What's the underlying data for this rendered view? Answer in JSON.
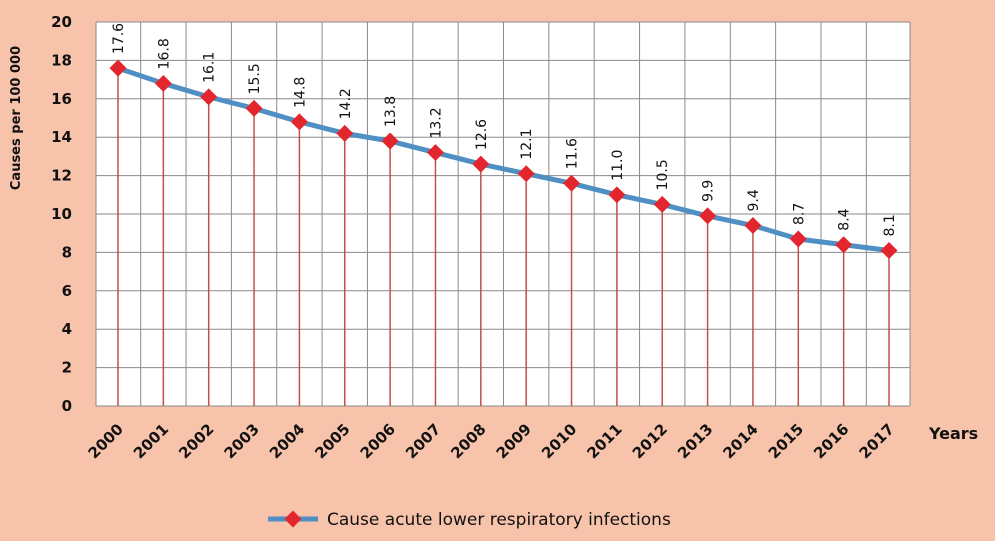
{
  "chart_data": {
    "type": "line",
    "x": [
      "2000",
      "2001",
      "2002",
      "2003",
      "2004",
      "2005",
      "2006",
      "2007",
      "2008",
      "2009",
      "2010",
      "2011",
      "2012",
      "2013",
      "2014",
      "2015",
      "2016",
      "2017"
    ],
    "series": [
      {
        "name": "Cause acute lower respiratory infections",
        "values": [
          17.6,
          16.8,
          16.1,
          15.5,
          14.8,
          14.2,
          13.8,
          13.2,
          12.6,
          12.1,
          11.6,
          11.0,
          10.5,
          9.9,
          9.4,
          8.7,
          8.4,
          8.1
        ],
        "labels": [
          "17.6",
          "16.8",
          "16.1",
          "15.5",
          "14.8",
          "14.2",
          "13.8",
          "13.2",
          "12.6",
          "12.1",
          "11.6",
          "11.0",
          "10.5",
          "9.9",
          "9.4",
          "8.7",
          "8.4",
          "8.1"
        ]
      }
    ],
    "title": "",
    "xlabel": "Years",
    "ylabel": "Causes per 100 000",
    "ylim": [
      0,
      20
    ],
    "yticks": [
      0,
      2,
      4,
      6,
      8,
      10,
      12,
      14,
      16,
      18,
      20
    ],
    "grid": true,
    "drop_lines": true,
    "legend_position": "bottom-center",
    "colors": {
      "background": "#f8c3ab",
      "plot_area": "#ffffff",
      "grid": "#8a8a8a",
      "line": "#4f8fc4",
      "marker": "#e3262d",
      "drop_line": "#c0504d"
    }
  }
}
